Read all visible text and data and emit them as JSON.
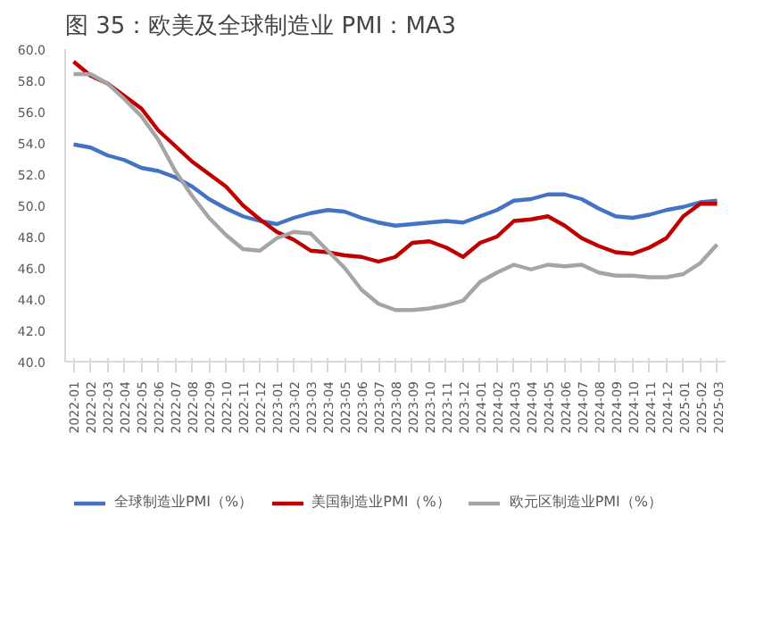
{
  "chart_data": {
    "type": "line",
    "title": "图 35：欧美及全球制造业 PMI：MA3",
    "categories": [
      "2022-01",
      "2022-02",
      "2022-03",
      "2022-04",
      "2022-05",
      "2022-06",
      "2022-07",
      "2022-08",
      "2022-09",
      "2022-10",
      "2022-11",
      "2022-12",
      "2023-01",
      "2023-02",
      "2023-03",
      "2023-04",
      "2023-05",
      "2023-06",
      "2023-07",
      "2023-08",
      "2023-09",
      "2023-10",
      "2023-11",
      "2023-12",
      "2024-01",
      "2024-02",
      "2024-03",
      "2024-04",
      "2024-05",
      "2024-06",
      "2024-07",
      "2024-08",
      "2024-09",
      "2024-10",
      "2024-11",
      "2024-12",
      "2025-01",
      "2025-02",
      "2025-03"
    ],
    "series": [
      {
        "name": "全球制造业PMI（%）",
        "color": "#4472c4",
        "values": [
          53.9,
          53.7,
          53.2,
          52.9,
          52.4,
          52.2,
          51.8,
          51.2,
          50.4,
          49.8,
          49.3,
          49.0,
          48.8,
          49.2,
          49.5,
          49.7,
          49.6,
          49.2,
          48.9,
          48.7,
          48.8,
          48.9,
          49.0,
          48.9,
          49.3,
          49.7,
          50.3,
          50.4,
          50.7,
          50.7,
          50.4,
          49.8,
          49.3,
          49.2,
          49.4,
          49.7,
          49.9,
          50.2,
          50.3
        ]
      },
      {
        "name": "美国制造业PMI（%）",
        "color": "#c00000",
        "values": [
          59.2,
          58.3,
          57.8,
          57.0,
          56.2,
          54.8,
          53.8,
          52.8,
          52.0,
          51.2,
          50.0,
          49.1,
          48.3,
          47.8,
          47.1,
          47.0,
          46.8,
          46.7,
          46.4,
          46.7,
          47.6,
          47.7,
          47.3,
          46.7,
          47.6,
          48.0,
          49.0,
          49.1,
          49.3,
          48.7,
          47.9,
          47.4,
          47.0,
          46.9,
          47.3,
          47.9,
          49.3,
          50.1,
          50.1
        ]
      },
      {
        "name": "欧元区制造业PMI（%）",
        "color": "#a5a5a5",
        "values": [
          58.4,
          58.4,
          57.8,
          56.8,
          55.7,
          54.2,
          52.2,
          50.6,
          49.2,
          48.1,
          47.2,
          47.1,
          47.9,
          48.3,
          48.2,
          47.1,
          46.0,
          44.6,
          43.7,
          43.3,
          43.3,
          43.4,
          43.6,
          43.9,
          45.1,
          45.7,
          46.2,
          45.9,
          46.2,
          46.1,
          46.2,
          45.7,
          45.5,
          45.5,
          45.4,
          45.4,
          45.6,
          46.3,
          47.5
        ]
      }
    ],
    "ylim": [
      40,
      60
    ],
    "yticks": [
      {
        "value": 40,
        "label": "40.0"
      },
      {
        "value": 42,
        "label": "42.0"
      },
      {
        "value": 44,
        "label": "44.0"
      },
      {
        "value": 46,
        "label": "46.0"
      },
      {
        "value": 48,
        "label": "48.0"
      },
      {
        "value": 50,
        "label": "50.0"
      },
      {
        "value": 52,
        "label": "52.0"
      },
      {
        "value": 54,
        "label": "54.0"
      },
      {
        "value": 56,
        "label": "56.0"
      },
      {
        "value": 58,
        "label": "58.0"
      },
      {
        "value": 60,
        "label": "60.0"
      }
    ],
    "grid": false,
    "legend": "bottom",
    "line_style": "solid"
  }
}
